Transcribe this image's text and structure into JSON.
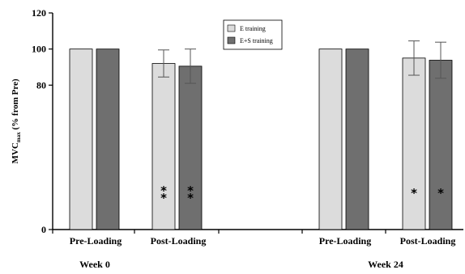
{
  "chart_data": {
    "type": "bar",
    "ylabel_main": "MVC",
    "ylabel_sub": "max",
    "ylabel_rest": " (% from Pre)",
    "ylim": [
      0,
      120
    ],
    "yticks": [
      0,
      80,
      100,
      120
    ],
    "groups": [
      {
        "label": "Week 0",
        "categories": [
          "Pre-Loading",
          "Post-Loading"
        ]
      },
      {
        "label": "Week 24",
        "categories": [
          "Pre-Loading",
          "Post-Loading"
        ]
      }
    ],
    "series": [
      {
        "name": "E training",
        "color": "#dcdcdc",
        "values": [
          100,
          92.0,
          100,
          95.0
        ],
        "err": [
          0,
          7.5,
          0,
          9.5
        ],
        "stars": [
          "",
          "**",
          "",
          "*"
        ]
      },
      {
        "name": "E+S training",
        "color": "#6f6f6f",
        "values": [
          100,
          90.5,
          100,
          93.8
        ],
        "err": [
          0,
          9.5,
          0,
          10.0
        ],
        "stars": [
          "",
          "**",
          "",
          "*"
        ]
      }
    ],
    "legend_position": "top-center"
  }
}
